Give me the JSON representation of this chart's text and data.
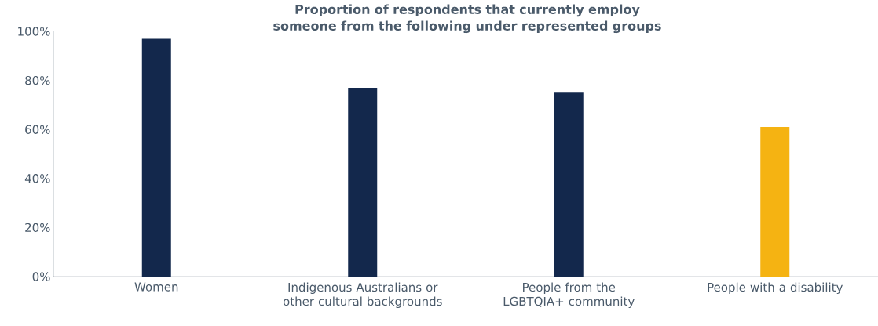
{
  "chart_data": {
    "type": "bar",
    "title": "Proportion of respondents that currently employ someone from the following under represented groups",
    "categories": [
      "Women",
      "Indigenous Australians or other cultural backgrounds",
      "People from the LGBTQIA+ community",
      "People with a disability"
    ],
    "values": [
      97,
      77,
      75,
      61
    ],
    "colors": [
      "#13284c",
      "#13284c",
      "#13284c",
      "#f5b312"
    ],
    "ylim": [
      0,
      100
    ],
    "yticks": [
      {
        "value": 0,
        "label": "0%"
      },
      {
        "value": 20,
        "label": "20%"
      },
      {
        "value": 40,
        "label": "40%"
      },
      {
        "value": 60,
        "label": "60%"
      },
      {
        "value": 80,
        "label": "80%"
      },
      {
        "value": 100,
        "label": "100%"
      }
    ],
    "grid": false
  }
}
